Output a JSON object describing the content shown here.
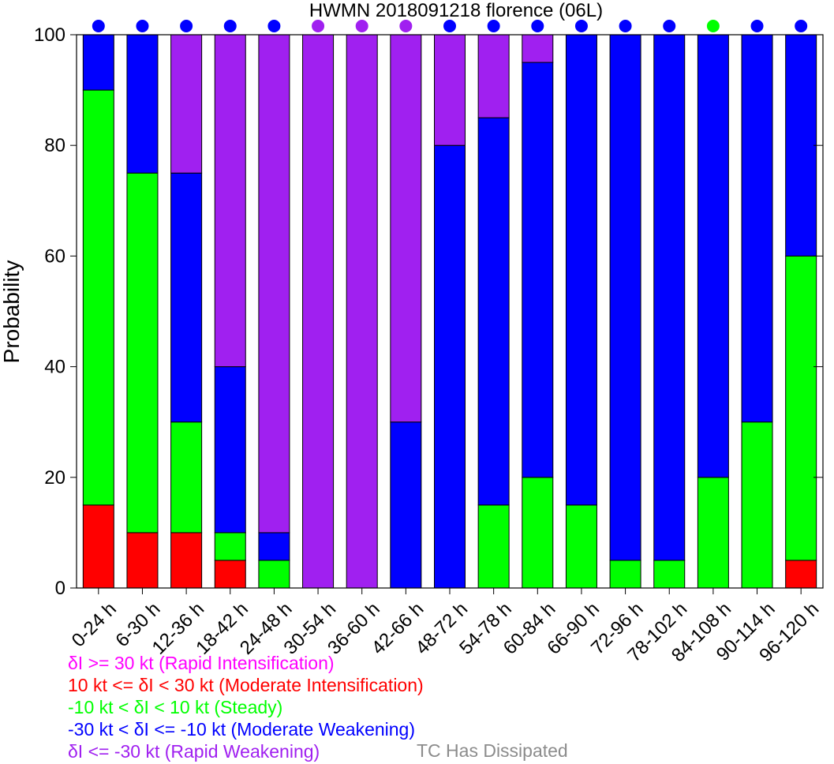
{
  "chart_data": {
    "type": "bar",
    "stacked": true,
    "title": "HWMN 2018091218 florence (06L)",
    "ylabel": "Probability",
    "xlabel": "",
    "ylim": [
      0,
      100
    ],
    "yticks": [
      0,
      20,
      40,
      60,
      80,
      100
    ],
    "categories": [
      "0-24 h",
      "6-30 h",
      "12-36 h",
      "18-42 h",
      "24-48 h",
      "30-54 h",
      "36-60 h",
      "42-66 h",
      "48-72 h",
      "54-78 h",
      "60-84 h",
      "66-90 h",
      "72-96 h",
      "78-102 h",
      "84-108 h",
      "90-114 h",
      "96-120 h"
    ],
    "series": [
      {
        "name": "δI >= 30 kt (Rapid Intensification)",
        "color": "#ff00ff",
        "values": [
          0,
          0,
          0,
          0,
          0,
          0,
          0,
          0,
          0,
          0,
          0,
          0,
          0,
          0,
          0,
          0,
          0
        ]
      },
      {
        "name": "10 kt <= δI < 30 kt (Moderate Intensification)",
        "color": "#ff0000",
        "values": [
          15,
          10,
          10,
          5,
          0,
          0,
          0,
          0,
          0,
          0,
          0,
          0,
          0,
          0,
          0,
          0,
          5
        ]
      },
      {
        "name": "-10 kt < δI < 10 kt (Steady)",
        "color": "#00ff00",
        "values": [
          75,
          65,
          20,
          5,
          5,
          0,
          0,
          0,
          0,
          15,
          20,
          15,
          5,
          5,
          20,
          30,
          55
        ]
      },
      {
        "name": "-30 kt < δI <= -10 kt (Moderate Weakening)",
        "color": "#0000ff",
        "values": [
          10,
          25,
          45,
          30,
          5,
          0,
          0,
          30,
          80,
          70,
          75,
          85,
          95,
          95,
          80,
          70,
          40
        ]
      },
      {
        "name": "δI <= -30 kt (Rapid Weakening)",
        "color": "#a020f0",
        "values": [
          0,
          0,
          25,
          60,
          90,
          100,
          100,
          70,
          20,
          15,
          5,
          0,
          0,
          0,
          0,
          0,
          0
        ]
      }
    ],
    "top_markers": [
      "#0000ff",
      "#0000ff",
      "#0000ff",
      "#0000ff",
      "#0000ff",
      "#a020f0",
      "#a020f0",
      "#a020f0",
      "#0000ff",
      "#0000ff",
      "#0000ff",
      "#0000ff",
      "#0000ff",
      "#0000ff",
      "#00ff00",
      "#0000ff",
      "#0000ff"
    ],
    "grid": false
  },
  "legend": {
    "items": [
      {
        "label": "δI >= 30 kt (Rapid Intensification)",
        "color": "#ff00ff"
      },
      {
        "label": "10 kt <= δI < 30 kt (Moderate Intensification)",
        "color": "#ff0000"
      },
      {
        "label": "-10 kt < δI < 10 kt (Steady)",
        "color": "#00ff00"
      },
      {
        "label": "-30 kt < δI <= -10 kt (Moderate Weakening)",
        "color": "#0000ff"
      },
      {
        "label": "δI <= -30 kt (Rapid Weakening)",
        "color": "#a020f0"
      }
    ],
    "dissipated_label": "TC Has Dissipated",
    "dissipated_color": "#8c8c8c"
  }
}
